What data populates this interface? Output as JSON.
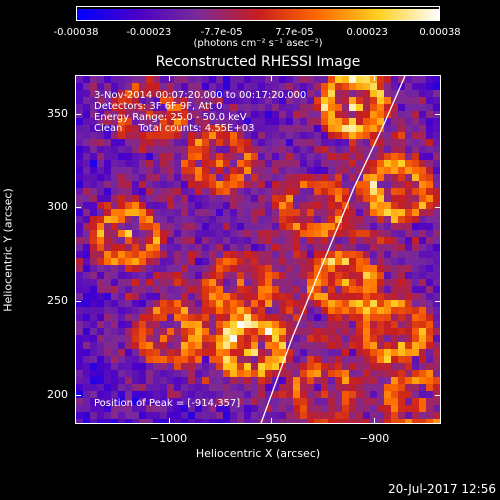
{
  "colorbar": {
    "tick_labels": [
      "-0.00038",
      "-0.00023",
      "-7.7e-05",
      "7.7e-05",
      "0.00023",
      "0.00038"
    ],
    "unit_label": "(photons cm⁻² s⁻¹ asec⁻²)",
    "range": [
      -0.00038,
      0.00038
    ],
    "colors": [
      "#0000ff",
      "#4a00c8",
      "#7a2a9a",
      "#c81e1e",
      "#ff6a00",
      "#ffd020",
      "#ffffff"
    ]
  },
  "chart_data": {
    "type": "heatmap",
    "title": "Reconstructed RHESSI Image",
    "xlabel": "Heliocentric X (arcsec)",
    "ylabel": "Heliocentric Y (arcsec)",
    "xlim": [
      -1045,
      -868
    ],
    "ylim": [
      185,
      370
    ],
    "x_ticks": [
      -1000,
      -950,
      -900
    ],
    "x_tick_labels": [
      "−1000",
      "−950",
      "−900"
    ],
    "y_ticks": [
      200,
      250,
      300,
      350
    ],
    "y_tick_labels": [
      "200",
      "250",
      "300",
      "350"
    ],
    "info_lines": [
      "3-Nov-2014 00:07:20.000 to 00:17:20.000",
      "Detectors: 3F 6F 9F, Att 0",
      "Energy Range: 25.0 - 50.0 keV",
      "Clean     Total counts: 4.55E+03"
    ],
    "peak_label": "Position of Peak = [-914,357]",
    "peak_position": [
      -914,
      357
    ],
    "limb_curve": [
      [
        -955,
        185
      ],
      [
        -940,
        230
      ],
      [
        -925,
        270
      ],
      [
        -910,
        310
      ],
      [
        -895,
        345
      ],
      [
        -885,
        370
      ]
    ],
    "bright_regions": [
      {
        "x": -1020,
        "y": 285,
        "intensity": 0.85
      },
      {
        "x": -1000,
        "y": 232,
        "intensity": 0.7
      },
      {
        "x": -960,
        "y": 225,
        "intensity": 0.95
      },
      {
        "x": -965,
        "y": 260,
        "intensity": 0.6
      },
      {
        "x": -930,
        "y": 300,
        "intensity": 0.65
      },
      {
        "x": -915,
        "y": 260,
        "intensity": 0.8
      },
      {
        "x": -890,
        "y": 235,
        "intensity": 0.75
      },
      {
        "x": -888,
        "y": 310,
        "intensity": 0.9
      },
      {
        "x": -910,
        "y": 355,
        "intensity": 1.0
      },
      {
        "x": -1010,
        "y": 350,
        "intensity": 0.55
      },
      {
        "x": -975,
        "y": 325,
        "intensity": 0.7
      },
      {
        "x": -925,
        "y": 200,
        "intensity": 0.6
      },
      {
        "x": -878,
        "y": 195,
        "intensity": 0.7
      }
    ]
  },
  "footer": {
    "date": "20-Jul-2017 12:56"
  }
}
